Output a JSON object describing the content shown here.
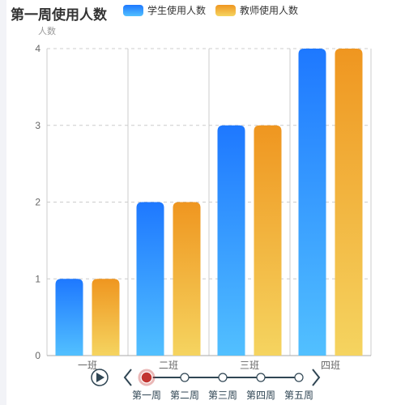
{
  "chart_data": {
    "type": "bar",
    "title": "第一周使用人数",
    "ylabel": "人数",
    "xlabel": "",
    "categories": [
      "一班",
      "二班",
      "三班",
      "四班"
    ],
    "ylim": [
      0,
      4
    ],
    "yticks": [
      "0",
      "1",
      "2",
      "3",
      "4"
    ],
    "grid": true,
    "legend_position": "top",
    "series": [
      {
        "name": "学生使用人数",
        "values": [
          1,
          2,
          3,
          4
        ],
        "color_top": "#1e78ff",
        "color_bottom": "#52c0ff"
      },
      {
        "name": "教师使用人数",
        "values": [
          1,
          2,
          3,
          4
        ],
        "color_top": "#ef9620",
        "color_bottom": "#f5d460"
      }
    ]
  },
  "timeline": {
    "items": [
      "第一周",
      "第二周",
      "第三周",
      "第四周",
      "第五周"
    ],
    "active_index": 0,
    "play_icon": "play-icon",
    "prev_icon": "chevron-left-icon",
    "next_icon": "chevron-right-icon",
    "active_color": "#c23531"
  }
}
